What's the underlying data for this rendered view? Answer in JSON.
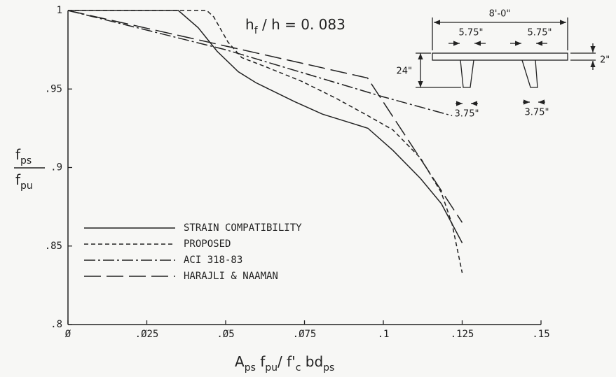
{
  "chart_data": {
    "type": "line",
    "annotation_parts": [
      {
        "text": "h"
      },
      {
        "text": "f",
        "sub": true
      },
      {
        "text": " / h = 0. 083"
      }
    ],
    "x_label_parts": [
      {
        "text": "A"
      },
      {
        "text": "ps",
        "sub": true
      },
      {
        "text": " f"
      },
      {
        "text": "pu",
        "sub": true
      },
      {
        "text": "/ f'"
      },
      {
        "text": "c",
        "sub": true
      },
      {
        "text": " bd"
      },
      {
        "text": "ps",
        "sub": true
      }
    ],
    "y_label_top_parts": [
      {
        "text": "f"
      },
      {
        "text": "ps",
        "sub": true
      }
    ],
    "y_label_bottom_parts": [
      {
        "text": "f"
      },
      {
        "text": "pu",
        "sub": true
      }
    ],
    "xlim": [
      0,
      0.15
    ],
    "xticks": [
      {
        "value": 0,
        "label": "Ø"
      },
      {
        "value": 0.025,
        "label": ".Ø25"
      },
      {
        "value": 0.05,
        "label": ".Ø5"
      },
      {
        "value": 0.075,
        "label": ".Ø75"
      },
      {
        "value": 0.1,
        "label": ".1"
      },
      {
        "value": 0.125,
        "label": ".125"
      },
      {
        "value": 0.15,
        "label": ".15"
      }
    ],
    "ylim": [
      0.8,
      1
    ],
    "yticks": [
      {
        "value": 0.8,
        "label": ".8"
      },
      {
        "value": 0.85,
        "label": ".85"
      },
      {
        "value": 0.9,
        "label": ".9"
      },
      {
        "value": 0.95,
        "label": ".95"
      },
      1
    ],
    "legend": "lower left",
    "series": [
      {
        "name": "STRAIN COMPATIBILITY",
        "color": "#222222",
        "dash": "solid",
        "x": [
          0,
          0.035,
          0.0413,
          0.0473,
          0.054,
          0.0596,
          0.0718,
          0.0807,
          0.0951,
          0.103,
          0.1118,
          0.1184,
          0.125
        ],
        "values": [
          1,
          1,
          0.989,
          0.974,
          0.961,
          0.954,
          0.942,
          0.934,
          0.925,
          0.911,
          0.893,
          0.877,
          0.852
        ]
      },
      {
        "name": "PROPOSED",
        "color": "#222222",
        "dash": "dashed",
        "x": [
          0,
          0.044,
          0.0462,
          0.0507,
          0.0551,
          0.0629,
          0.074,
          0.0851,
          0.0951,
          0.103,
          0.1118,
          0.1184,
          0.1218,
          0.125
        ],
        "values": [
          1,
          1,
          0.996,
          0.98,
          0.97,
          0.964,
          0.955,
          0.944,
          0.933,
          0.924,
          0.906,
          0.884,
          0.864,
          0.833
        ]
      },
      {
        "name": "ACI 318-83",
        "color": "#222222",
        "dash": "dashdot",
        "x": [
          0,
          0.05,
          0.1,
          0.1218
        ],
        "values": [
          1,
          0.975,
          0.945,
          0.933
        ]
      },
      {
        "name": "HARAJLI & NAAMAN",
        "color": "#222222",
        "dash": "longdash",
        "x": [
          0,
          0.095,
          0.125
        ],
        "values": [
          1,
          0.957,
          0.865
        ]
      }
    ]
  },
  "section_diagram": {
    "width": "8'-0\"",
    "flange_thickness": "2\"",
    "depth": "24\"",
    "stem_top_1": "5.75\"",
    "stem_top_2": "5.75\"",
    "stem_bottom_1": "3.75\"",
    "stem_bottom_2": "3.75\""
  }
}
